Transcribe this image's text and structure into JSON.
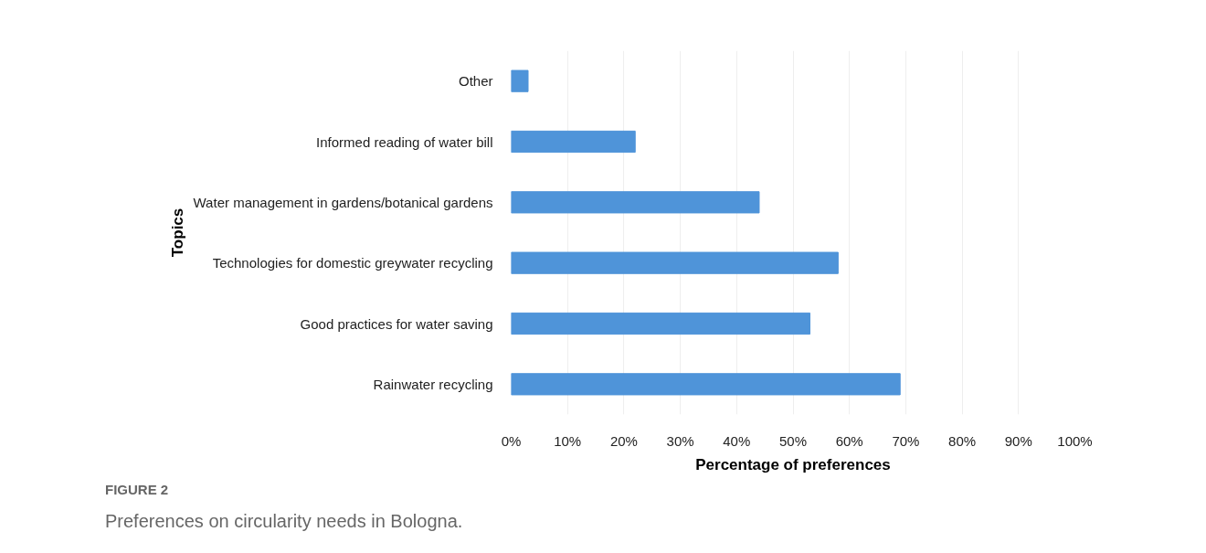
{
  "chart_data": {
    "type": "bar",
    "orientation": "horizontal",
    "categories": [
      "Other",
      "Informed reading of water bill",
      "Water management in gardens/botanical gardens",
      "Technologies for domestic greywater recycling",
      "Good practices for water saving",
      "Rainwater recycling"
    ],
    "values": [
      3,
      22,
      44,
      58,
      53,
      69
    ],
    "color": "#4f94d9",
    "xlabel": "Percentage of preferences",
    "ylabel": "Topics",
    "xlim": [
      0,
      100
    ],
    "xticks": [
      {
        "value": 0,
        "label": "0%"
      },
      {
        "value": 10,
        "label": "10%"
      },
      {
        "value": 20,
        "label": "20%"
      },
      {
        "value": 30,
        "label": "30%"
      },
      {
        "value": 40,
        "label": "40%"
      },
      {
        "value": 50,
        "label": "50%"
      },
      {
        "value": 60,
        "label": "60%"
      },
      {
        "value": 70,
        "label": "70%"
      },
      {
        "value": 80,
        "label": "80%"
      },
      {
        "value": 90,
        "label": "90%"
      },
      {
        "value": 100,
        "label": "100%"
      }
    ],
    "grid": "x",
    "annotations": [
      "FIGURE 2",
      "Preferences on circularity needs in Bologna."
    ]
  }
}
